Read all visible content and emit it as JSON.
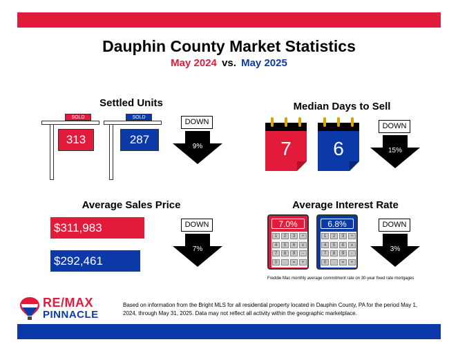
{
  "colors": {
    "red": "#e31b3b",
    "blue": "#0b3aa8",
    "black": "#000000"
  },
  "header": {
    "title": "Dauphin County Market Statistics",
    "period_a": "May 2024",
    "vs": "vs.",
    "period_b": "May 2025"
  },
  "settled_units": {
    "title": "Settled Units",
    "sold_label": "SOLD",
    "value_a": "313",
    "value_b": "287",
    "direction": "DOWN",
    "change": "9%"
  },
  "median_days": {
    "title": "Median Days to Sell",
    "value_a": "7",
    "value_b": "6",
    "direction": "DOWN",
    "change": "15%"
  },
  "avg_price": {
    "title": "Average Sales Price",
    "value_a": "$311,983",
    "value_b": "$292,461",
    "direction": "DOWN",
    "change": "7%"
  },
  "interest_rate": {
    "title": "Average Interest Rate",
    "value_a": "7.0%",
    "value_b": "6.8%",
    "direction": "DOWN",
    "change": "3%",
    "footnote": "Freddie Mac monthly average commitment rate on 30-year fixed rate mortgages",
    "keys": [
      "1",
      "2",
      "3",
      "÷",
      "4",
      "5",
      "6",
      "x",
      "7",
      "8",
      "9",
      "-",
      "0",
      ".",
      "=",
      "+"
    ]
  },
  "logo": {
    "line1": "RE/MAX",
    "line2": "PINNACLE"
  },
  "disclaimer": "Based on information from the Bright MLS for all residential property located in Dauphin County, PA for the period May 1, 2024, through May 31, 2025.  Data may not reflect all activity within the geographic marketplace."
}
